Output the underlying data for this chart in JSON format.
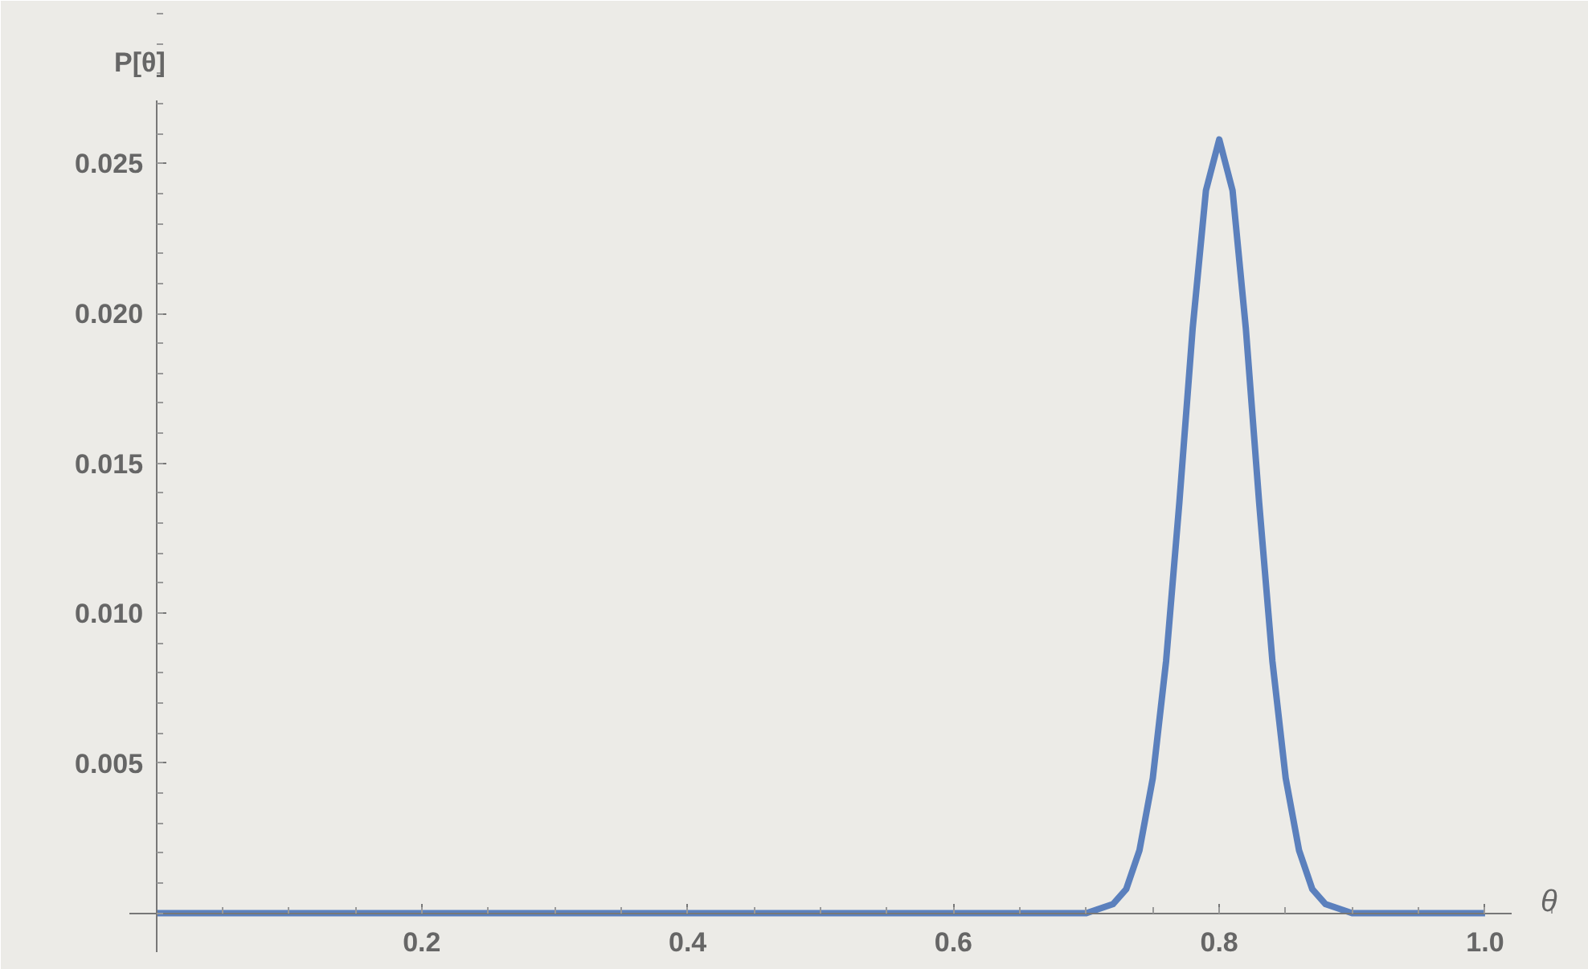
{
  "chart_data": {
    "type": "line",
    "xlabel": "θ",
    "ylabel": "P[θ]",
    "x": [
      0,
      0.1,
      0.2,
      0.3,
      0.4,
      0.5,
      0.6,
      0.65,
      0.7,
      0.72,
      0.73,
      0.74,
      0.75,
      0.76,
      0.77,
      0.78,
      0.79,
      0.8,
      0.81,
      0.82,
      0.83,
      0.84,
      0.85,
      0.86,
      0.87,
      0.88,
      0.9,
      0.95,
      1.0
    ],
    "series": [
      {
        "color": "#5b80bd",
        "values": [
          0,
          0,
          0,
          0,
          0,
          0,
          0,
          0,
          0,
          0.0003,
          0.0008,
          0.0021,
          0.0045,
          0.0084,
          0.0137,
          0.0195,
          0.0241,
          0.0258,
          0.0241,
          0.0195,
          0.0137,
          0.0084,
          0.0045,
          0.0021,
          0.0008,
          0.0003,
          0,
          0,
          0
        ]
      }
    ],
    "xlim": [
      -0.02,
      1.02
    ],
    "ylim": [
      -0.0013,
      0.0271
    ],
    "xticks": [
      0.2,
      0.4,
      0.6,
      0.8,
      {
        "value": 1.0,
        "label": "1.0"
      }
    ],
    "yticks": [
      0.005,
      {
        "value": 0.01,
        "label": "0.010"
      },
      0.015,
      {
        "value": 0.02,
        "label": "0.020"
      },
      0.025
    ],
    "grid": false,
    "marker": "none",
    "line_style": "solid"
  }
}
